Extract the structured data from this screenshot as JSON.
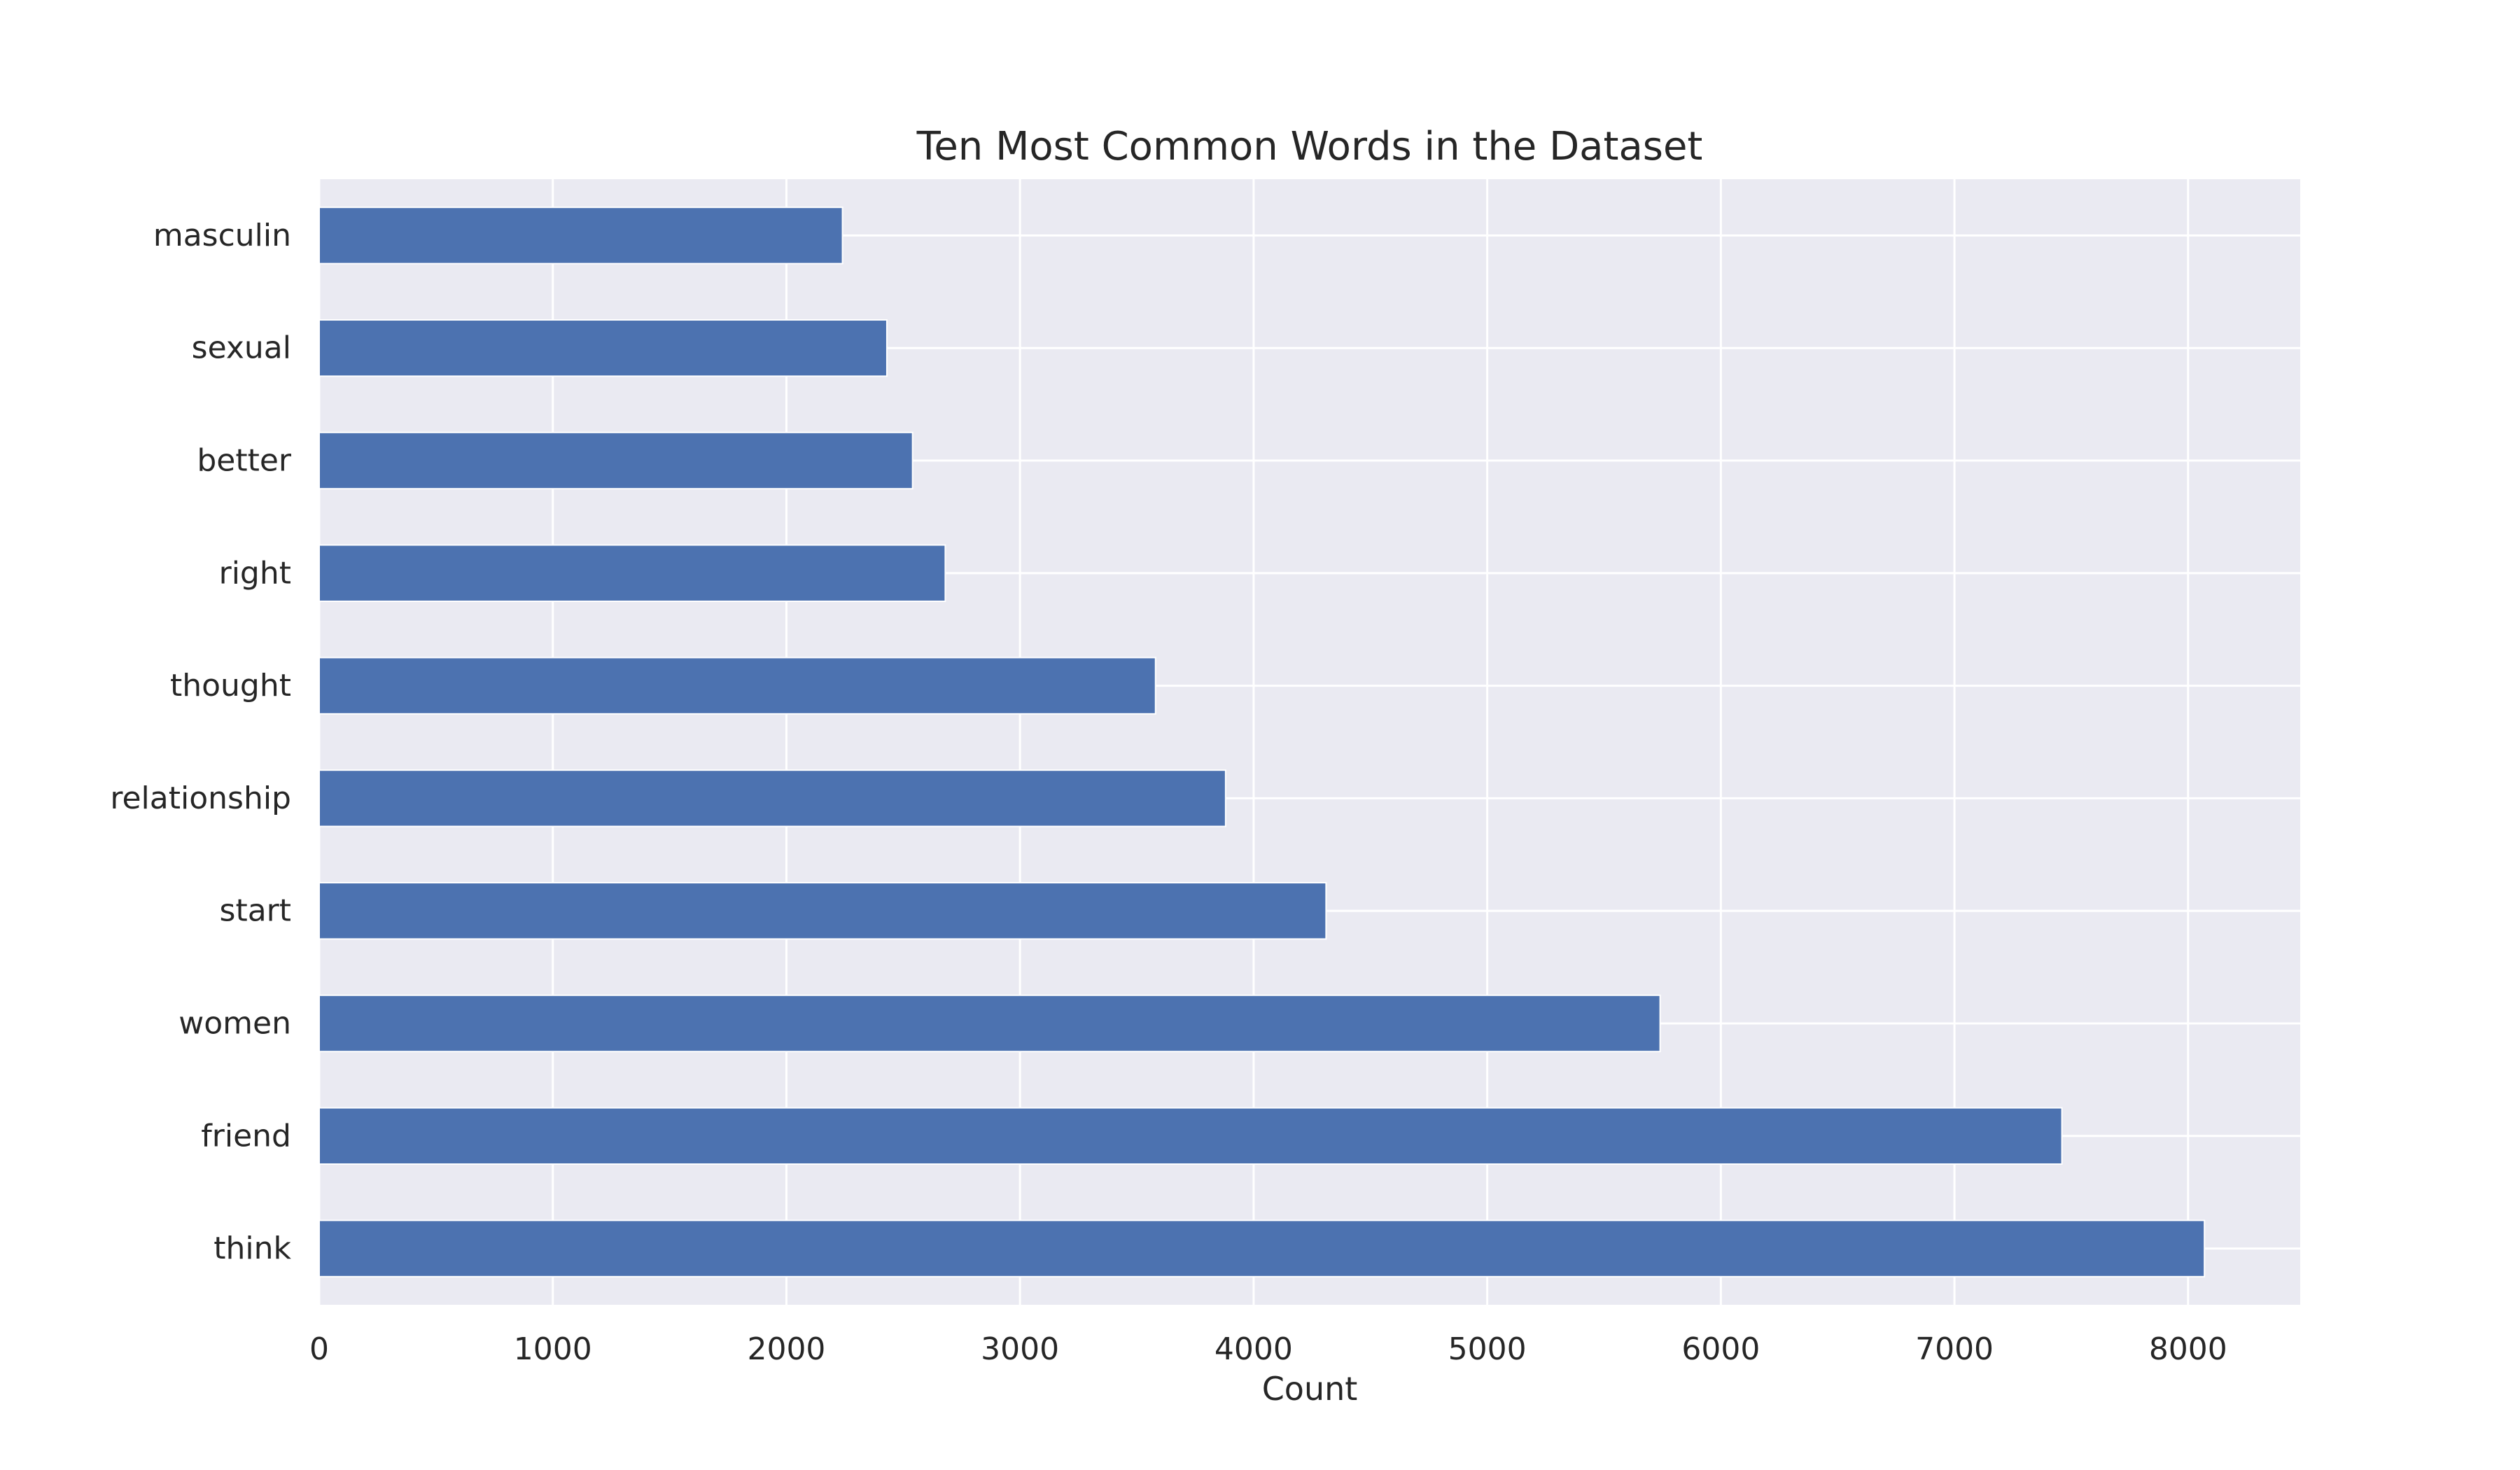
{
  "chart_data": {
    "type": "bar",
    "orientation": "horizontal",
    "title": "Ten Most Common Words in the Dataset",
    "xlabel": "Count",
    "ylabel": "",
    "categories": [
      "think",
      "friend",
      "women",
      "start",
      "relationship",
      "thought",
      "right",
      "better",
      "sexual",
      "masculin"
    ],
    "values": [
      8070,
      7460,
      5740,
      4310,
      3880,
      3580,
      2680,
      2540,
      2430,
      2240
    ],
    "xlim": [
      0,
      8480
    ],
    "xticks": [
      0,
      1000,
      2000,
      3000,
      4000,
      5000,
      6000,
      7000,
      8000
    ],
    "grid": true,
    "legend": "none",
    "colors": {
      "bar": "#4c72b0",
      "plot_background": "#eaeaf2",
      "grid": "#ffffff",
      "text": "#262626"
    }
  }
}
